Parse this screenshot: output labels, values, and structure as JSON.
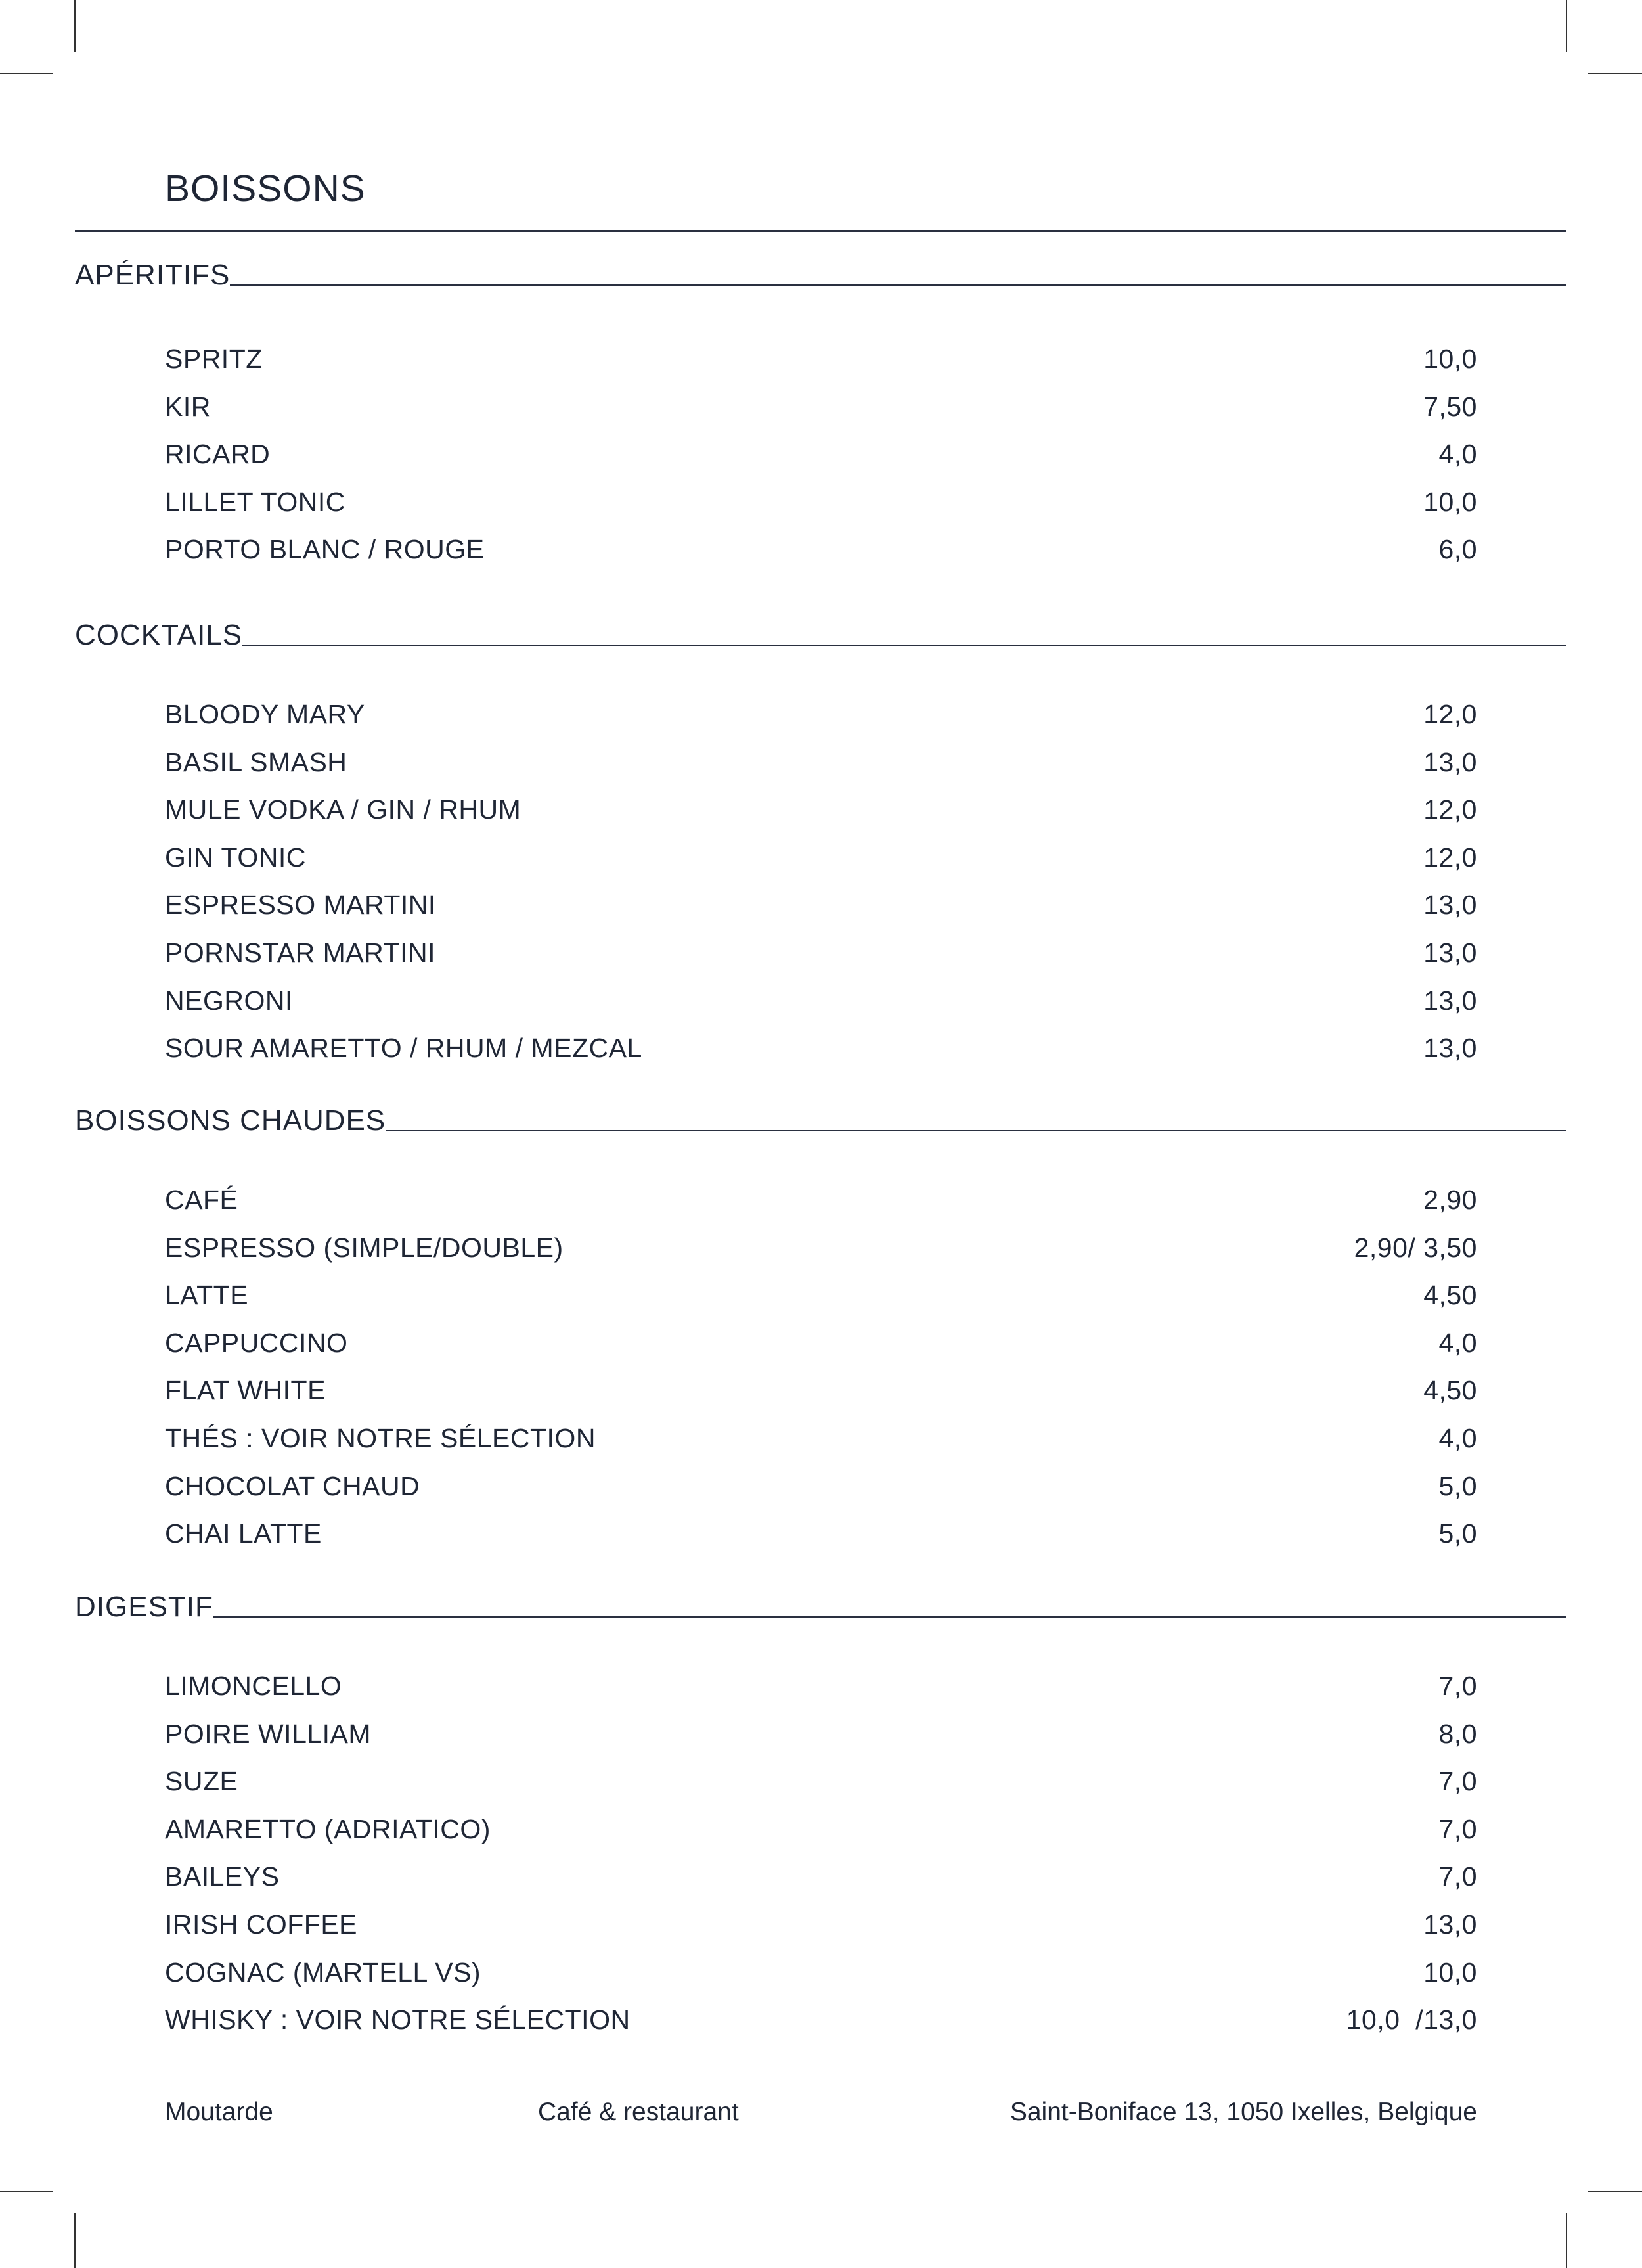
{
  "title": "BOISSONS",
  "sections": [
    {
      "heading": "APÉRITIFS",
      "items": [
        {
          "name": "SPRITZ",
          "price": "10,0"
        },
        {
          "name": "KIR",
          "price": "7,50"
        },
        {
          "name": "RICARD",
          "price": "4,0"
        },
        {
          "name": "LILLET TONIC",
          "price": "10,0"
        },
        {
          "name": "PORTO BLANC / ROUGE",
          "price": "6,0"
        }
      ]
    },
    {
      "heading": "COCKTAILS",
      "items": [
        {
          "name": "BLOODY MARY",
          "price": "12,0"
        },
        {
          "name": "BASIL SMASH",
          "price": "13,0"
        },
        {
          "name": "MULE VODKA / GIN / RHUM",
          "price": "12,0"
        },
        {
          "name": "GIN TONIC",
          "price": "12,0"
        },
        {
          "name": "ESPRESSO MARTINI",
          "price": "13,0"
        },
        {
          "name": "PORNSTAR MARTINI",
          "price": "13,0"
        },
        {
          "name": "NEGRONI",
          "price": "13,0"
        },
        {
          "name": "SOUR AMARETTO / RHUM / MEZCAL",
          "price": "13,0"
        }
      ]
    },
    {
      "heading": "BOISSONS CHAUDES",
      "items": [
        {
          "name": "CAFÉ",
          "price": "2,90"
        },
        {
          "name": "ESPRESSO (SIMPLE/DOUBLE)",
          "price": "2,90/ 3,50"
        },
        {
          "name": "LATTE",
          "price": "4,50"
        },
        {
          "name": "CAPPUCCINO",
          "price": "4,0"
        },
        {
          "name": "FLAT WHITE",
          "price": "4,50"
        },
        {
          "name": "THÉS : VOIR NOTRE SÉLECTION",
          "price": "4,0"
        },
        {
          "name": "CHOCOLAT CHAUD",
          "price": "5,0"
        },
        {
          "name": "CHAI LATTE",
          "price": "5,0"
        }
      ]
    },
    {
      "heading": "DIGESTIF",
      "items": [
        {
          "name": "LIMONCELLO",
          "price": "7,0"
        },
        {
          "name": "POIRE WILLIAM",
          "price": "8,0"
        },
        {
          "name": "SUZE",
          "price": "7,0"
        },
        {
          "name": "AMARETTO (ADRIATICO)",
          "price": "7,0"
        },
        {
          "name": "BAILEYS",
          "price": "7,0"
        },
        {
          "name": "IRISH COFFEE",
          "price": "13,0"
        },
        {
          "name": "COGNAC (MARTELL VS)",
          "price": "10,0"
        },
        {
          "name": "WHISKY : VOIR NOTRE SÉLECTION",
          "price": "10,0  /13,0"
        }
      ]
    }
  ],
  "footer": {
    "name": "Moutarde",
    "type": "Café & restaurant",
    "address": "Saint-Boniface 13, 1050 Ixelles, Belgique"
  }
}
